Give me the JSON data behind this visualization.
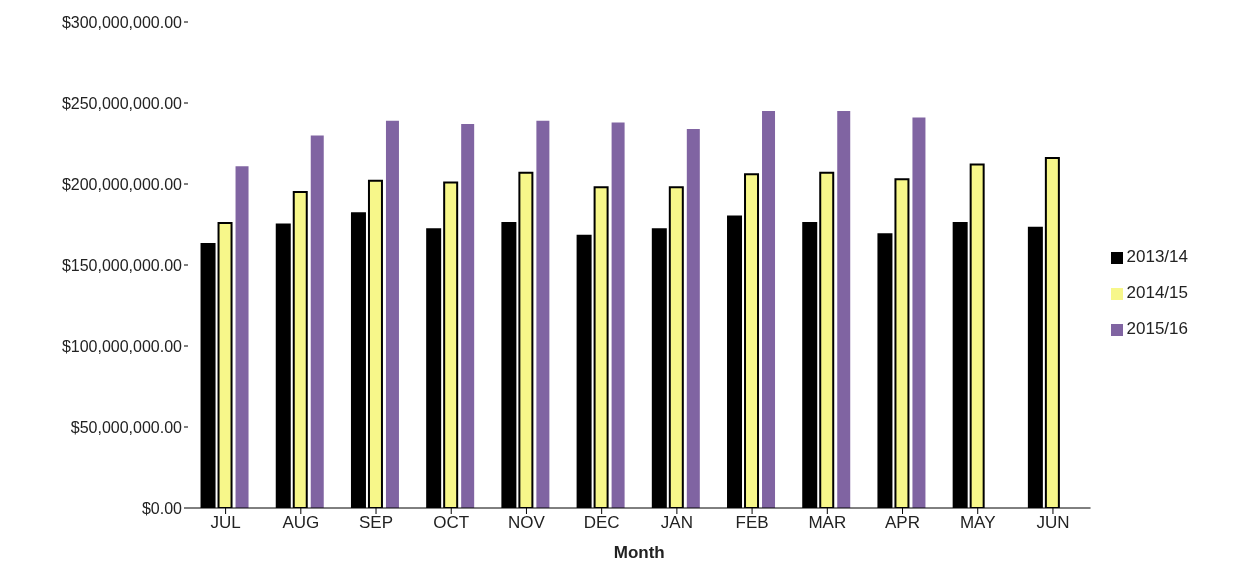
{
  "chart_data": {
    "type": "bar",
    "xlabel": "Month",
    "categories": [
      "JUL",
      "AUG",
      "SEP",
      "OCT",
      "NOV",
      "DEC",
      "JAN",
      "FEB",
      "MAR",
      "APR",
      "MAY",
      "JUN"
    ],
    "series": [
      {
        "name": "2013/14",
        "color": "#000000",
        "values": [
          163000000,
          175000000,
          182000000,
          172000000,
          176000000,
          168000000,
          172000000,
          180000000,
          176000000,
          169000000,
          176000000,
          173000000
        ]
      },
      {
        "name": "2014/15",
        "color": "#f7f78a",
        "values": [
          176000000,
          195000000,
          202000000,
          201000000,
          207000000,
          198000000,
          198000000,
          206000000,
          207000000,
          203000000,
          212000000,
          216000000
        ]
      },
      {
        "name": "2015/16",
        "color": "#8064a2",
        "values": [
          211000000,
          230000000,
          239000000,
          237000000,
          239000000,
          238000000,
          234000000,
          245000000,
          245000000,
          241000000,
          null,
          null
        ]
      }
    ],
    "ylim": [
      0,
      300000000
    ],
    "yticks": [
      {
        "value": 0,
        "label": "$0.00"
      },
      {
        "value": 50000000,
        "label": "$50,000,000.00"
      },
      {
        "value": 100000000,
        "label": "$100,000,000.00"
      },
      {
        "value": 150000000,
        "label": "$150,000,000.00"
      },
      {
        "value": 200000000,
        "label": "$200,000,000.00"
      },
      {
        "value": 250000000,
        "label": "$250,000,000.00"
      },
      {
        "value": 300000000,
        "label": "$300,000,000.00"
      }
    ],
    "grid": false,
    "legend": "right"
  }
}
